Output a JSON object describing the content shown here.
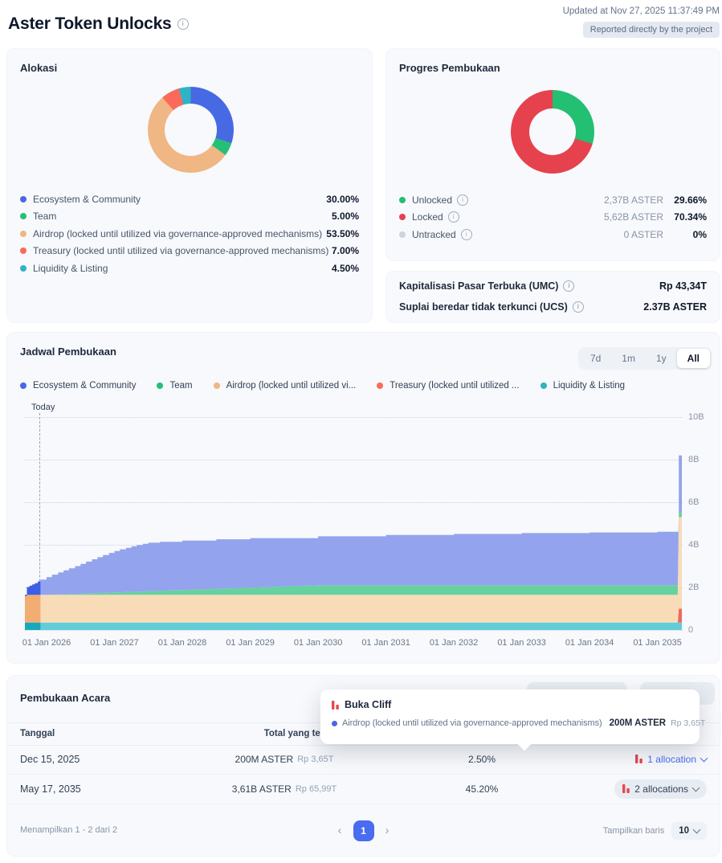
{
  "header": {
    "title": "Aster Token Unlocks",
    "updated": "Updated at Nov 27, 2025 11:37:49 PM",
    "badge": "Reported directly by the project"
  },
  "allocation": {
    "title": "Alokasi",
    "items": [
      {
        "label": "Ecosystem & Community",
        "percent": "30.00%",
        "color": "#4769e3"
      },
      {
        "label": "Team",
        "percent": "5.00%",
        "color": "#25bf77"
      },
      {
        "label": "Airdrop (locked until utilized via governance-approved mechanisms)",
        "percent": "53.50%",
        "color": "#f0b683"
      },
      {
        "label": "Treasury (locked until utilized via governance-approved mechanisms)",
        "percent": "7.00%",
        "color": "#fa6a5a"
      },
      {
        "label": "Liquidity & Listing",
        "percent": "4.50%",
        "color": "#2fb3c6"
      }
    ]
  },
  "progress": {
    "title": "Progres Pembukaan",
    "items": [
      {
        "label": "Unlocked",
        "amount": "2,37B ASTER",
        "percent": "29.66%",
        "color": "#23bf73"
      },
      {
        "label": "Locked",
        "amount": "5,62B ASTER",
        "percent": "70.34%",
        "color": "#e5424e"
      },
      {
        "label": "Untracked",
        "amount": "0 ASTER",
        "percent": "0%",
        "color": "#cbd5e1"
      }
    ]
  },
  "metrics": {
    "rows": [
      {
        "label": "Kapitalisasi Pasar Terbuka (UMC)",
        "value": "Rp 43,34T"
      },
      {
        "label": "Suplai beredar tidak terkunci (UCS)",
        "value": "2.37B ASTER"
      }
    ]
  },
  "schedule": {
    "title": "Jadwal Pembukaan",
    "today_label": "Today",
    "ranges": [
      {
        "label": "7d",
        "active": false
      },
      {
        "label": "1m",
        "active": false
      },
      {
        "label": "1y",
        "active": false
      },
      {
        "label": "All",
        "active": true
      }
    ],
    "legend": [
      {
        "label": "Ecosystem & Community",
        "color": "#4769e3"
      },
      {
        "label": "Team",
        "color": "#25bf77"
      },
      {
        "label": "Airdrop (locked until utilized vi...",
        "color": "#f0b683"
      },
      {
        "label": "Treasury (locked until utilized ...",
        "color": "#fa6a5a"
      },
      {
        "label": "Liquidity & Listing",
        "color": "#2fb3c6"
      }
    ]
  },
  "chart_data": [
    {
      "type": "pie",
      "title": "Alokasi",
      "hole": 0.6,
      "segments": [
        {
          "label": "Ecosystem & Community",
          "value": 30.0,
          "color": "#4769e3"
        },
        {
          "label": "Team",
          "value": 5.0,
          "color": "#25bf77"
        },
        {
          "label": "Airdrop (locked until utilized via governance-approved mechanisms)",
          "value": 53.5,
          "color": "#f0b683"
        },
        {
          "label": "Treasury (locked until utilized via governance-approved mechanisms)",
          "value": 7.0,
          "color": "#fa6a5a"
        },
        {
          "label": "Liquidity & Listing",
          "value": 4.5,
          "color": "#2fb3c6"
        }
      ]
    },
    {
      "type": "pie",
      "title": "Progres Pembukaan",
      "hole": 0.56,
      "segments": [
        {
          "label": "Unlocked",
          "value": 29.66,
          "color": "#23bf73"
        },
        {
          "label": "Locked",
          "value": 70.34,
          "color": "#e5424e"
        },
        {
          "label": "Untracked",
          "value": 0,
          "color": "#cbd5e1"
        }
      ]
    },
    {
      "type": "area",
      "title": "Jadwal Pembukaan",
      "stacked": true,
      "unit": "billions of ASTER unlocked (cumulative)",
      "xlim": [
        2025.68,
        2035.36
      ],
      "ylim": [
        0,
        10
      ],
      "today": 2025.91,
      "x_ticks": [
        "01 Jan 2026",
        "01 Jan 2027",
        "01 Jan 2028",
        "01 Jan 2029",
        "01 Jan 2030",
        "01 Jan 2031",
        "01 Jan 2032",
        "01 Jan 2033",
        "01 Jan 2034",
        "01 Jan 2035"
      ],
      "x_tick_years": [
        2026,
        2027,
        2028,
        2029,
        2030,
        2031,
        2032,
        2033,
        2034,
        2035
      ],
      "y_ticks": [
        "0",
        "2B",
        "4B",
        "6B",
        "8B",
        "10B"
      ],
      "series": [
        {
          "name": "baseline",
          "color": "none",
          "points": [
            [
              2025.68,
              0
            ],
            [
              2035.36,
              0
            ]
          ]
        },
        {
          "name": "Liquidity & Listing",
          "color": "#63ccd9",
          "past": "#16a9bc",
          "points": [
            [
              2025.68,
              0.35
            ],
            [
              2035.36,
              0.35
            ]
          ]
        },
        {
          "name": "Treasury (locked until utilized via governance-approved mechanisms)",
          "color": "#ee6a5b",
          "past": "#e05546",
          "points": [
            [
              2025.68,
              0.35
            ],
            [
              2035.3,
              0.35
            ],
            [
              2035.315,
              1.0
            ],
            [
              2035.36,
              1.0
            ]
          ]
        },
        {
          "name": "Airdrop (locked until utilized via governance-approved mechanisms)",
          "color": "#f8dcb8",
          "past": "#f2ad72",
          "points": [
            [
              2025.68,
              1.65
            ],
            [
              2035.3,
              1.65
            ],
            [
              2035.315,
              5.3
            ],
            [
              2035.36,
              5.3
            ]
          ]
        },
        {
          "name": "Team",
          "color": "#68d1a0",
          "past": "#2bbd7a",
          "points": [
            [
              2025.68,
              1.65
            ],
            [
              2026.0,
              1.65
            ],
            [
              2030.0,
              2.1
            ],
            [
              2035.3,
              2.1
            ],
            [
              2035.315,
              5.5
            ],
            [
              2035.36,
              5.5
            ]
          ]
        },
        {
          "name": "Ecosystem & Community",
          "color": "#93a3ee",
          "past": "#3c5fe6",
          "step": true,
          "points": [
            [
              2025.68,
              1.6
            ],
            [
              2025.71,
              2.02
            ],
            [
              2025.75,
              2.08
            ],
            [
              2025.79,
              2.14
            ],
            [
              2025.83,
              2.2
            ],
            [
              2025.87,
              2.28
            ],
            [
              2025.91,
              2.37
            ],
            [
              2026.0,
              2.48
            ],
            [
              2026.08,
              2.6
            ],
            [
              2026.17,
              2.7
            ],
            [
              2026.25,
              2.8
            ],
            [
              2026.33,
              2.9
            ],
            [
              2026.42,
              3.0
            ],
            [
              2026.5,
              3.1
            ],
            [
              2026.58,
              3.21
            ],
            [
              2026.67,
              3.32
            ],
            [
              2026.75,
              3.42
            ],
            [
              2026.83,
              3.52
            ],
            [
              2026.92,
              3.62
            ],
            [
              2027.0,
              3.71
            ],
            [
              2027.08,
              3.79
            ],
            [
              2027.17,
              3.86
            ],
            [
              2027.25,
              3.93
            ],
            [
              2027.33,
              3.99
            ],
            [
              2027.42,
              4.05
            ],
            [
              2027.5,
              4.1
            ],
            [
              2027.67,
              4.14
            ],
            [
              2028.0,
              4.2
            ],
            [
              2028.5,
              4.26
            ],
            [
              2029.0,
              4.31
            ],
            [
              2030.0,
              4.4
            ],
            [
              2031.0,
              4.46
            ],
            [
              2032.0,
              4.51
            ],
            [
              2033.0,
              4.55
            ],
            [
              2034.0,
              4.58
            ],
            [
              2035.0,
              4.61
            ],
            [
              2035.3,
              4.62
            ],
            [
              2035.315,
              8.2
            ],
            [
              2035.36,
              8.2
            ]
          ]
        }
      ]
    }
  ],
  "events": {
    "title": "Pembukaan Acara",
    "columns": [
      "Tanggal",
      "Total yang ter"
    ],
    "rows": [
      {
        "date": "Dec 15, 2025",
        "amount": "200M ASTER",
        "value": "Rp 3,65T",
        "percent": "2.50%",
        "allocations": "1 allocation",
        "variant": "link"
      },
      {
        "date": "May 17, 2035",
        "amount": "3,61B ASTER",
        "value": "Rp 65,99T",
        "percent": "45.20%",
        "allocations": "2 allocations",
        "variant": "pill"
      }
    ],
    "footer": {
      "showing": "Menampilkan 1 - 2 dari 2",
      "prev": "‹",
      "page": "1",
      "next": "›",
      "rows_label": "Tampilkan baris",
      "rows_value": "10"
    }
  },
  "tooltip": {
    "title": "Buka Cliff",
    "entry": {
      "label": "Airdrop (locked until utilized via governance-approved mechanisms)",
      "amount": "200M ASTER",
      "value": "Rp 3,65T",
      "color": "#4769e3"
    }
  }
}
